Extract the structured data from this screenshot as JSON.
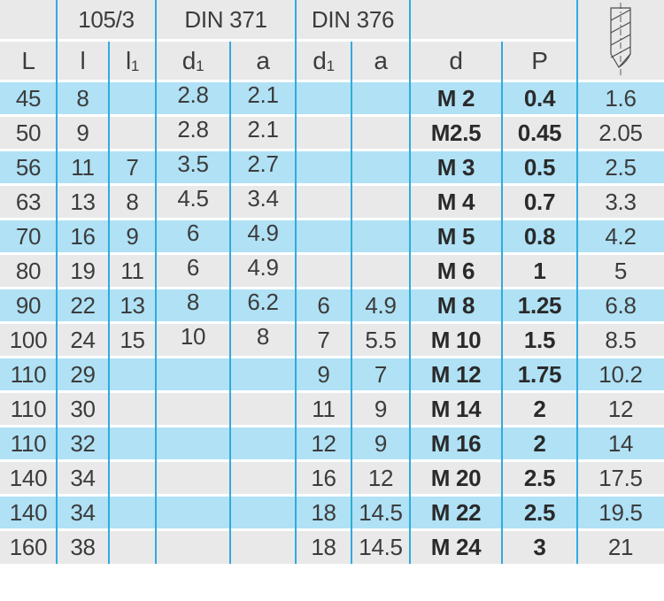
{
  "colors": {
    "row_blue": "#b0e1f5",
    "row_gray": "#e9e9ea",
    "header_bg": "#e9e9ea",
    "divider": "#2fabdf",
    "text": "#3c3c3c",
    "text_bold": "#2a2a2a"
  },
  "table": {
    "group_headers": {
      "corner": "",
      "series": "105/3",
      "din371": "DIN 371",
      "din376": "DIN 376"
    },
    "sub_headers": {
      "L": "L",
      "l": "l",
      "l1": {
        "base": "l",
        "sub": "1"
      },
      "din371_d1": {
        "base": "d",
        "sub": "1"
      },
      "din371_a": "a",
      "din376_d1": {
        "base": "d",
        "sub": "1"
      },
      "din376_a": "a",
      "d": "d",
      "P": "P",
      "drill_icon": "core-hole-drill-icon"
    },
    "rows": [
      [
        "45",
        "8",
        "",
        "2.8",
        "2.1",
        "",
        "",
        "M 2",
        "0.4",
        "1.6"
      ],
      [
        "50",
        "9",
        "",
        "2.8",
        "2.1",
        "",
        "",
        "M2.5",
        "0.45",
        "2.05"
      ],
      [
        "56",
        "11",
        "7",
        "3.5",
        "2.7",
        "",
        "",
        "M 3",
        "0.5",
        "2.5"
      ],
      [
        "63",
        "13",
        "8",
        "4.5",
        "3.4",
        "",
        "",
        "M 4",
        "0.7",
        "3.3"
      ],
      [
        "70",
        "16",
        "9",
        "6",
        "4.9",
        "",
        "",
        "M 5",
        "0.8",
        "4.2"
      ],
      [
        "80",
        "19",
        "11",
        "6",
        "4.9",
        "",
        "",
        "M 6",
        "1",
        "5"
      ],
      [
        "90",
        "22",
        "13",
        "8",
        "6.2",
        "6",
        "4.9",
        "M 8",
        "1.25",
        "6.8"
      ],
      [
        "100",
        "24",
        "15",
        "10",
        "8",
        "7",
        "5.5",
        "M 10",
        "1.5",
        "8.5"
      ],
      [
        "110",
        "29",
        "",
        "",
        "",
        "9",
        "7",
        "M 12",
        "1.75",
        "10.2"
      ],
      [
        "110",
        "30",
        "",
        "",
        "",
        "11",
        "9",
        "M 14",
        "2",
        "12"
      ],
      [
        "110",
        "32",
        "",
        "",
        "",
        "12",
        "9",
        "M 16",
        "2",
        "14"
      ],
      [
        "140",
        "34",
        "",
        "",
        "",
        "16",
        "12",
        "M 20",
        "2.5",
        "17.5"
      ],
      [
        "140",
        "34",
        "",
        "",
        "",
        "18",
        "14.5",
        "M 22",
        "2.5",
        "19.5"
      ],
      [
        "160",
        "38",
        "",
        "",
        "",
        "18",
        "14.5",
        "M 24",
        "3",
        "21"
      ]
    ]
  }
}
